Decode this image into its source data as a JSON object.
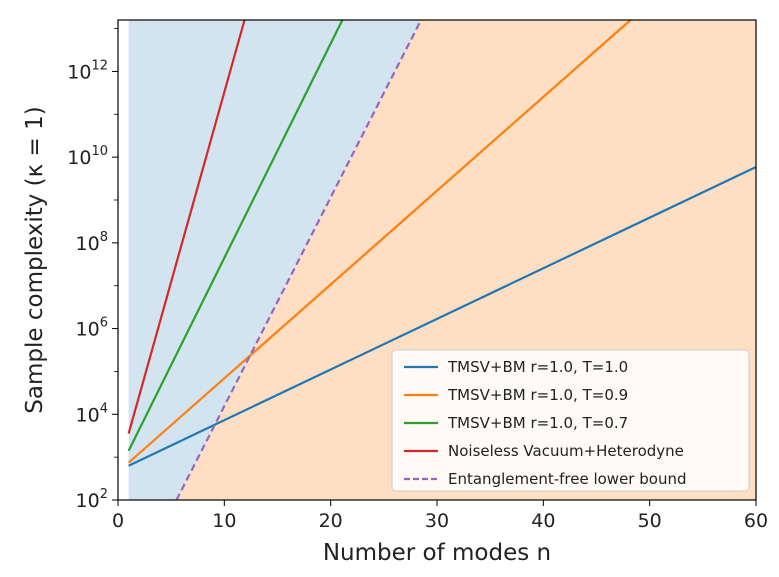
{
  "chart_data": {
    "type": "line",
    "xlabel": "Number of modes n",
    "ylabel": "Sample complexity (κ = 1)",
    "xlim": [
      0,
      60
    ],
    "ylim_log10": [
      2,
      13.2
    ],
    "yscale": "log",
    "x_ticks": [
      0,
      10,
      20,
      30,
      40,
      50,
      60
    ],
    "y_ticks": [
      {
        "exp": 2,
        "base": "10",
        "sup": "2"
      },
      {
        "exp": 4,
        "base": "10",
        "sup": "4"
      },
      {
        "exp": 6,
        "base": "10",
        "sup": "6"
      },
      {
        "exp": 8,
        "base": "10",
        "sup": "8"
      },
      {
        "exp": 10,
        "base": "10",
        "sup": "10"
      },
      {
        "exp": 12,
        "base": "10",
        "sup": "12"
      }
    ],
    "series": [
      {
        "name": "TMSV+BM r=1.0, T=1.0",
        "color": "#1f77b4",
        "style": "solid",
        "x": [
          1,
          60
        ],
        "log10_y": [
          2.8,
          9.77
        ]
      },
      {
        "name": "TMSV+BM r=1.0, T=0.9",
        "color": "#ff7f0e",
        "style": "solid",
        "x": [
          1,
          48.2
        ],
        "log10_y": [
          2.87,
          13.2
        ]
      },
      {
        "name": "TMSV+BM r=1.0, T=0.7",
        "color": "#2ca02c",
        "style": "solid",
        "x": [
          1,
          21.1
        ],
        "log10_y": [
          3.15,
          13.2
        ]
      },
      {
        "name": "Noiseless Vacuum+Heterodyne",
        "color": "#d62728",
        "style": "solid",
        "x": [
          1,
          11.9
        ],
        "log10_y": [
          3.55,
          13.2
        ]
      },
      {
        "name": "Entanglement-free lower bound",
        "color": "#9467bd",
        "style": "dashed",
        "x": [
          5.5,
          28.5
        ],
        "log10_y": [
          2.0,
          13.2
        ]
      }
    ],
    "shaded_regions": [
      {
        "name": "entanglement-advantage-region",
        "color": "#1f77b4",
        "opacity": 0.2
      },
      {
        "name": "no-advantage-region",
        "color": "#ff7f0e",
        "opacity": 0.25
      }
    ],
    "legend_position": "lower right"
  }
}
